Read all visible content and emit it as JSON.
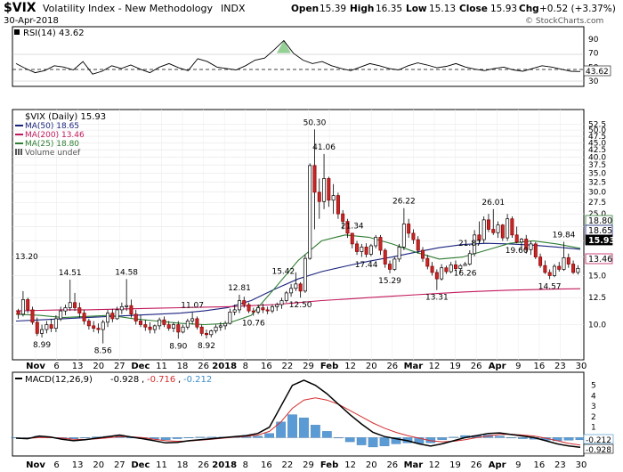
{
  "header": {
    "symbol": "$VIX",
    "name": "Volatility Index - New Methodology",
    "exchange": "INDX",
    "date": "30-Apr-2018",
    "watermark": "© StockCharts.com",
    "quote": {
      "open_label": "Open",
      "open": "15.39",
      "high_label": "High",
      "high": "16.35",
      "low_label": "Low",
      "low": "15.13",
      "close_label": "Close",
      "close": "15.93",
      "chg_label": "Chg",
      "chg": "+0.52 (+3.37%)"
    }
  },
  "rsi_panel": {
    "label": "RSI(14) 43.62",
    "value_tag": "43.62",
    "axis_ticks": [
      "90",
      "70",
      "50",
      "30"
    ]
  },
  "price_panel": {
    "legend": [
      {
        "text": "$VIX (Daily) 15.93",
        "color": "#000000",
        "swatch": "none"
      },
      {
        "text": "MA(50) 18.65",
        "color": "#1a237e",
        "swatch": "line"
      },
      {
        "text": "MA(200) 13.46",
        "color": "#c2185b",
        "swatch": "line"
      },
      {
        "text": "MA(25) 18.80",
        "color": "#2e7d32",
        "swatch": "line"
      },
      {
        "text": "Volume undef",
        "color": "#555555",
        "swatch": "bars"
      }
    ],
    "axis_ticks": [
      "52.5",
      "50.0",
      "47.5",
      "45.0",
      "42.5",
      "40.0",
      "37.5",
      "35.0",
      "32.5",
      "30.0",
      "27.5",
      "25.0",
      "22.5",
      "20.0",
      "17.5",
      "15.0",
      "12.5",
      "10.0"
    ],
    "tags": {
      "ma25": "18.80",
      "ma50": "18.65",
      "close": "15.93",
      "ma200": "13.46"
    },
    "annotations": [
      "13.20",
      "14.51",
      "14.58",
      "8.99",
      "8.56",
      "8.90",
      "11.07",
      "8.92",
      "12.81",
      "10.76",
      "12.50",
      "15.42",
      "50.30",
      "41.06",
      "21.34",
      "17.44",
      "15.29",
      "26.22",
      "13.31",
      "21.87",
      "16.26",
      "26.01",
      "19.60",
      "14.57",
      "19.84"
    ]
  },
  "macd_panel": {
    "label": "MACD(12,26,9)",
    "macd": "-0.928",
    "signal": "-0.716",
    "hist": "-0.212",
    "axis_ticks": [
      "5",
      "4",
      "3",
      "2",
      "1",
      "0"
    ],
    "tags": {
      "hist": "-0.212",
      "macd": "-0.928"
    }
  },
  "x_axis": {
    "labels": [
      "Nov",
      "6",
      "13",
      "20",
      "27",
      "Dec",
      "11",
      "18",
      "26",
      "2018",
      "8",
      "16",
      "22",
      "29",
      "Feb",
      "12",
      "20",
      "26",
      "Mar",
      "12",
      "19",
      "26",
      "Apr",
      "9",
      "16",
      "23",
      "30"
    ]
  },
  "chart_data": {
    "type": "candlestick",
    "title": "$VIX Volatility Index - New Methodology INDX",
    "date_range": [
      "2017-10-30",
      "2018-04-30"
    ],
    "y_scale": "log",
    "ylim": [
      7.5,
      52.5
    ],
    "ohlc": [
      [
        11.2,
        11.4,
        10.5,
        10.9
      ],
      [
        10.9,
        13.2,
        10.7,
        12.3
      ],
      [
        12.3,
        12.5,
        11.0,
        11.3
      ],
      [
        11.3,
        11.6,
        10.0,
        10.2
      ],
      [
        10.2,
        10.6,
        9.1,
        9.3
      ],
      [
        9.3,
        10.0,
        8.99,
        9.6
      ],
      [
        9.6,
        10.3,
        9.3,
        10.0
      ],
      [
        10.0,
        10.5,
        9.4,
        9.7
      ],
      [
        9.7,
        10.8,
        9.4,
        10.5
      ],
      [
        10.5,
        11.6,
        10.3,
        11.2
      ],
      [
        11.2,
        11.8,
        10.8,
        11.5
      ],
      [
        11.5,
        14.51,
        11.2,
        12.0
      ],
      [
        12.0,
        13.0,
        11.2,
        11.5
      ],
      [
        11.5,
        12.0,
        10.6,
        11.0
      ],
      [
        11.0,
        11.3,
        10.0,
        10.3
      ],
      [
        10.3,
        10.5,
        9.6,
        9.9
      ],
      [
        9.9,
        10.3,
        9.4,
        9.7
      ],
      [
        9.7,
        10.1,
        9.3,
        9.6
      ],
      [
        9.6,
        10.4,
        8.56,
        10.2
      ],
      [
        10.2,
        11.3,
        9.8,
        11.0
      ],
      [
        11.0,
        11.4,
        10.2,
        10.5
      ],
      [
        10.5,
        11.6,
        10.4,
        11.3
      ],
      [
        11.3,
        12.0,
        10.9,
        11.6
      ],
      [
        11.6,
        14.58,
        11.2,
        11.7
      ],
      [
        11.7,
        12.3,
        10.6,
        10.9
      ],
      [
        10.9,
        11.3,
        10.0,
        10.3
      ],
      [
        10.3,
        10.8,
        9.8,
        10.0
      ],
      [
        10.0,
        10.4,
        9.5,
        9.8
      ],
      [
        9.8,
        10.2,
        9.3,
        9.6
      ],
      [
        9.6,
        10.0,
        9.3,
        9.9
      ],
      [
        9.9,
        10.6,
        9.6,
        10.4
      ],
      [
        10.4,
        10.7,
        9.8,
        10.0
      ],
      [
        10.0,
        10.3,
        9.5,
        9.7
      ],
      [
        9.7,
        10.2,
        9.4,
        10.0
      ],
      [
        10.0,
        10.3,
        8.9,
        9.4
      ],
      [
        9.4,
        10.0,
        9.3,
        9.8
      ],
      [
        9.8,
        10.5,
        9.6,
        10.3
      ],
      [
        10.3,
        11.07,
        10.0,
        10.5
      ],
      [
        10.5,
        10.7,
        9.6,
        9.8
      ],
      [
        9.8,
        10.0,
        9.1,
        9.3
      ],
      [
        9.3,
        9.6,
        8.92,
        9.2
      ],
      [
        9.2,
        9.6,
        9.0,
        9.5
      ],
      [
        9.5,
        10.0,
        9.3,
        9.8
      ],
      [
        9.8,
        10.2,
        9.5,
        9.9
      ],
      [
        9.9,
        10.3,
        9.6,
        10.1
      ],
      [
        10.1,
        11.4,
        10.0,
        11.1
      ],
      [
        11.1,
        11.8,
        10.8,
        11.3
      ],
      [
        11.3,
        12.81,
        11.0,
        12.2
      ],
      [
        12.2,
        12.6,
        11.5,
        11.8
      ],
      [
        11.8,
        12.0,
        11.0,
        11.2
      ],
      [
        11.2,
        11.5,
        10.76,
        11.1
      ],
      [
        11.1,
        11.8,
        10.9,
        11.5
      ],
      [
        11.5,
        11.9,
        11.0,
        11.3
      ],
      [
        11.3,
        11.6,
        10.9,
        11.2
      ],
      [
        11.2,
        11.8,
        11.0,
        11.6
      ],
      [
        11.6,
        12.0,
        11.2,
        11.8
      ],
      [
        11.8,
        12.5,
        11.4,
        12.2
      ],
      [
        12.2,
        13.2,
        12.0,
        13.0
      ],
      [
        13.0,
        14.0,
        12.6,
        13.5
      ],
      [
        13.5,
        15.42,
        13.2,
        14.0
      ],
      [
        14.0,
        14.2,
        12.5,
        13.2
      ],
      [
        13.2,
        17.8,
        13.0,
        17.3
      ],
      [
        17.3,
        38.0,
        17.1,
        37.3
      ],
      [
        37.3,
        50.3,
        22.0,
        29.9
      ],
      [
        29.9,
        33.5,
        24.0,
        27.7
      ],
      [
        27.7,
        41.06,
        26.0,
        33.5
      ],
      [
        33.5,
        34.0,
        26.5,
        28.0
      ],
      [
        28.0,
        32.0,
        25.0,
        29.1
      ],
      [
        29.1,
        29.8,
        24.0,
        25.0
      ],
      [
        25.0,
        25.8,
        22.0,
        23.5
      ],
      [
        23.5,
        24.0,
        20.5,
        21.3
      ],
      [
        21.3,
        21.34,
        18.8,
        19.5
      ],
      [
        19.5,
        20.0,
        17.8,
        18.3
      ],
      [
        18.3,
        19.5,
        17.5,
        19.0
      ],
      [
        19.0,
        19.6,
        17.44,
        17.9
      ],
      [
        17.9,
        19.5,
        17.6,
        19.2
      ],
      [
        19.2,
        21.0,
        18.8,
        20.6
      ],
      [
        20.6,
        21.0,
        17.8,
        18.5
      ],
      [
        18.5,
        18.8,
        16.0,
        16.5
      ],
      [
        16.5,
        17.0,
        15.29,
        15.8
      ],
      [
        15.8,
        17.5,
        15.6,
        17.2
      ],
      [
        17.2,
        19.5,
        16.8,
        19.0
      ],
      [
        19.0,
        26.22,
        18.5,
        23.0
      ],
      [
        23.0,
        24.0,
        20.5,
        21.3
      ],
      [
        21.3,
        22.0,
        19.5,
        20.2
      ],
      [
        20.2,
        20.8,
        18.0,
        18.5
      ],
      [
        18.5,
        19.0,
        16.8,
        17.3
      ],
      [
        17.3,
        17.8,
        15.8,
        16.2
      ],
      [
        16.2,
        16.8,
        15.0,
        15.4
      ],
      [
        15.4,
        15.8,
        13.31,
        14.6
      ],
      [
        14.6,
        16.5,
        14.4,
        16.0
      ],
      [
        16.0,
        16.3,
        15.2,
        15.5
      ],
      [
        15.5,
        16.8,
        15.3,
        16.4
      ],
      [
        16.4,
        17.0,
        15.6,
        15.9
      ],
      [
        15.9,
        16.5,
        15.3,
        16.3
      ],
      [
        16.3,
        16.8,
        16.26,
        16.5
      ],
      [
        16.5,
        18.5,
        16.3,
        18.0
      ],
      [
        18.0,
        21.87,
        17.6,
        21.0
      ],
      [
        21.0,
        23.5,
        19.5,
        20.2
      ],
      [
        20.2,
        24.5,
        19.6,
        23.8
      ],
      [
        23.8,
        25.0,
        21.5,
        22.0
      ],
      [
        22.0,
        26.01,
        21.0,
        21.4
      ],
      [
        21.4,
        23.5,
        20.5,
        22.8
      ],
      [
        22.8,
        23.0,
        20.0,
        20.5
      ],
      [
        20.5,
        25.0,
        20.0,
        24.0
      ],
      [
        24.0,
        24.5,
        20.5,
        21.0
      ],
      [
        21.0,
        22.5,
        19.6,
        19.8
      ],
      [
        19.8,
        20.5,
        18.5,
        20.3
      ],
      [
        20.3,
        21.0,
        18.0,
        18.6
      ],
      [
        18.6,
        20.0,
        17.8,
        19.5
      ],
      [
        19.5,
        19.8,
        17.2,
        17.5
      ],
      [
        17.5,
        18.0,
        16.0,
        16.3
      ],
      [
        16.3,
        17.0,
        15.2,
        15.4
      ],
      [
        15.4,
        15.8,
        14.57,
        15.0
      ],
      [
        15.0,
        16.5,
        14.8,
        16.2
      ],
      [
        16.2,
        16.8,
        15.5,
        15.8
      ],
      [
        15.8,
        19.84,
        15.6,
        17.4
      ],
      [
        17.4,
        18.0,
        16.0,
        16.5
      ],
      [
        16.5,
        17.0,
        15.2,
        15.4
      ],
      [
        15.4,
        16.35,
        15.13,
        15.93
      ]
    ],
    "series": [
      {
        "name": "MA(50)",
        "values": [
          10.3,
          10.4,
          10.5,
          10.6,
          10.7,
          10.8,
          10.9,
          11.0,
          11.2,
          11.5,
          12.2,
          13.4,
          14.6,
          15.5,
          16.2,
          16.9,
          17.5,
          18.2,
          18.9,
          19.4,
          19.6,
          19.5,
          19.3,
          19.0,
          18.65
        ]
      },
      {
        "name": "MA(200)",
        "values": [
          11.2,
          11.25,
          11.3,
          11.3,
          11.35,
          11.4,
          11.45,
          11.5,
          11.55,
          11.6,
          11.7,
          11.8,
          12.0,
          12.2,
          12.35,
          12.5,
          12.65,
          12.8,
          12.95,
          13.1,
          13.2,
          13.3,
          13.36,
          13.42,
          13.46
        ]
      },
      {
        "name": "MA(25)",
        "values": [
          10.9,
          10.8,
          10.6,
          10.7,
          10.8,
          10.5,
          10.3,
          10.1,
          10.0,
          10.1,
          10.8,
          13.5,
          17.0,
          20.0,
          21.0,
          20.6,
          19.5,
          18.2,
          17.2,
          17.5,
          18.5,
          19.6,
          20.0,
          19.5,
          18.8
        ]
      }
    ],
    "rsi": [
      55,
      48,
      42,
      45,
      52,
      50,
      46,
      58,
      40,
      44,
      52,
      48,
      53,
      47,
      42,
      50,
      55,
      49,
      45,
      62,
      58,
      50,
      48,
      46,
      52,
      60,
      63,
      75,
      88,
      70,
      60,
      55,
      58,
      52,
      48,
      45,
      50,
      55,
      52,
      48,
      46,
      52,
      56,
      53,
      49,
      51,
      55,
      50,
      47,
      45,
      48,
      50,
      46,
      44,
      48,
      52,
      50,
      47,
      44,
      43.62
    ],
    "macd": [
      -0.05,
      -0.1,
      0.15,
      0.05,
      -0.15,
      -0.3,
      -0.2,
      -0.05,
      0.1,
      0.25,
      0.05,
      -0.1,
      -0.3,
      -0.5,
      -0.45,
      -0.3,
      -0.2,
      -0.1,
      0.0,
      0.1,
      0.2,
      0.4,
      1.0,
      3.0,
      5.0,
      5.5,
      5.0,
      4.2,
      3.2,
      2.2,
      1.3,
      0.5,
      0.1,
      -0.1,
      -0.3,
      -0.6,
      -0.8,
      -0.6,
      -0.3,
      0.0,
      0.2,
      0.4,
      0.45,
      0.3,
      0.15,
      0.0,
      -0.3,
      -0.6,
      -0.8,
      -0.928
    ],
    "macd_signal": [
      -0.05,
      -0.07,
      0.0,
      0.02,
      -0.05,
      -0.15,
      -0.18,
      -0.12,
      -0.02,
      0.1,
      0.08,
      0.0,
      -0.15,
      -0.3,
      -0.35,
      -0.32,
      -0.25,
      -0.15,
      -0.05,
      0.05,
      0.12,
      0.25,
      0.6,
      1.5,
      2.8,
      3.6,
      3.8,
      3.6,
      3.2,
      2.6,
      2.0,
      1.4,
      0.9,
      0.5,
      0.2,
      -0.05,
      -0.3,
      -0.4,
      -0.35,
      -0.2,
      0.0,
      0.15,
      0.3,
      0.32,
      0.25,
      0.15,
      -0.05,
      -0.3,
      -0.55,
      -0.716
    ],
    "macd_ylim": [
      -1.5,
      6
    ]
  }
}
